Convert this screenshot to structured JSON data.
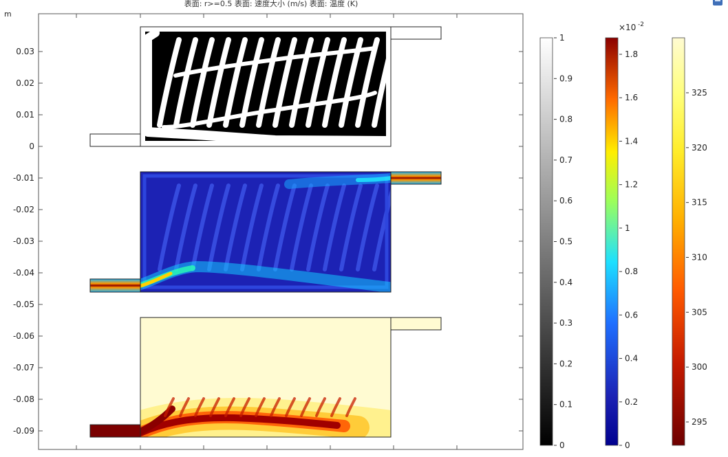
{
  "plot": {
    "title": "表面: r>=0.5  表面: 速度大小 (m/s)  表面: 温度 (K)",
    "y_unit": "m",
    "y_ticks": [
      "0.03",
      "0.02",
      "0.01",
      "0",
      "-0.01",
      "-0.02",
      "-0.03",
      "-0.04",
      "-0.05",
      "-0.06",
      "-0.07",
      "-0.08",
      "-0.09"
    ],
    "colors": {
      "structure_solid": "#000000",
      "structure_void": "#ffffff",
      "velocity_low": "#1c22b4",
      "velocity_high": "#8b0000",
      "temperature_high": "#fffbd2",
      "temperature_low": "#800000"
    }
  },
  "legends": {
    "grayscale": {
      "quantity": "r>=0.5",
      "ticks": [
        "1",
        "0.9",
        "0.8",
        "0.7",
        "0.6",
        "0.5",
        "0.4",
        "0.3",
        "0.2",
        "0.1",
        "0"
      ]
    },
    "velocity": {
      "quantity": "速度大小 (m/s)",
      "exponent_label": "×10",
      "exponent": "-2",
      "ticks": [
        "1.8",
        "1.6",
        "1.4",
        "1.2",
        "1",
        "0.8",
        "0.6",
        "0.4",
        "0.2",
        "0"
      ]
    },
    "temperature": {
      "quantity": "温度 (K)",
      "ticks": [
        "325",
        "320",
        "315",
        "310",
        "305",
        "300",
        "295"
      ]
    }
  },
  "toolbar": {
    "icon": "clipboard-icon"
  }
}
